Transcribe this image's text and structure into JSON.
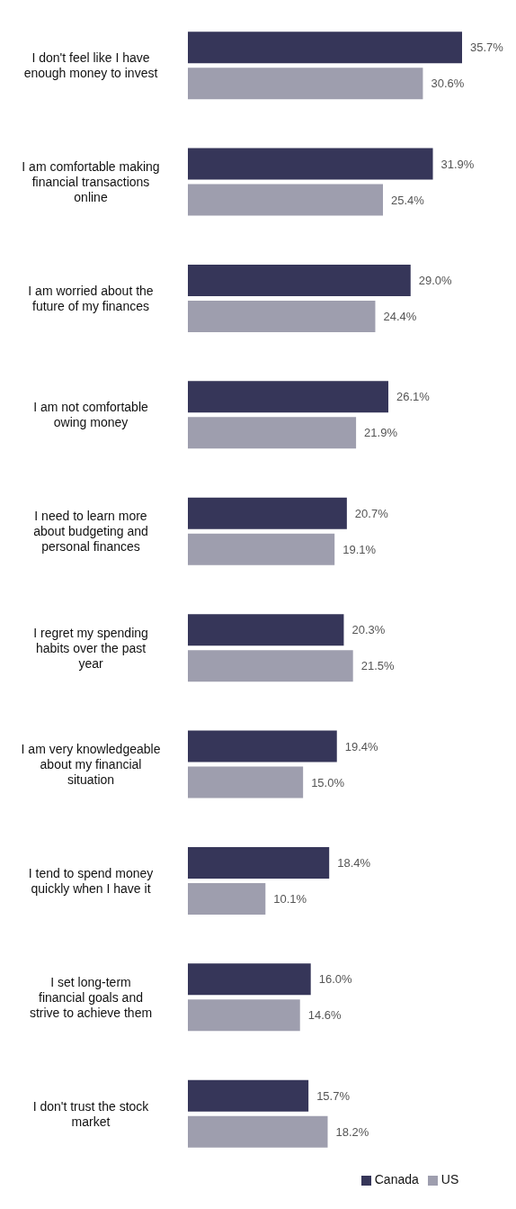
{
  "chart_data": {
    "type": "bar",
    "orientation": "horizontal",
    "categories": [
      "I don't feel like I have enough money to invest",
      "I am comfortable making financial transactions online",
      "I am worried about the future of my finances",
      "I am not comfortable owing money",
      "I need to learn more about budgeting and personal finances",
      "I regret my spending habits over the past year",
      "I am very knowledgeable about my financial situation",
      "I tend to spend money quickly when I have it",
      "I set long-term financial goals and strive to achieve them",
      "I don't trust the stock market"
    ],
    "series": [
      {
        "name": "Canada",
        "color": "#363659",
        "values": [
          35.7,
          31.9,
          29.0,
          26.1,
          20.7,
          20.3,
          19.4,
          18.4,
          16.0,
          15.7
        ],
        "value_labels": [
          "35.7%",
          "31.9%",
          "29.0%",
          "26.1%",
          "20.7%",
          "20.3%",
          "19.4%",
          "18.4%",
          "16.0%",
          "15.7%"
        ]
      },
      {
        "name": "US",
        "color": "#9e9eae",
        "values": [
          30.6,
          25.4,
          24.4,
          21.9,
          19.1,
          21.5,
          15.0,
          10.1,
          14.6,
          18.2
        ],
        "value_labels": [
          "30.6%",
          "25.4%",
          "24.4%",
          "21.9%",
          "19.1%",
          "21.5%",
          "15.0%",
          "10.1%",
          "14.6%",
          "18.2%"
        ]
      }
    ],
    "legend": "bottom"
  }
}
